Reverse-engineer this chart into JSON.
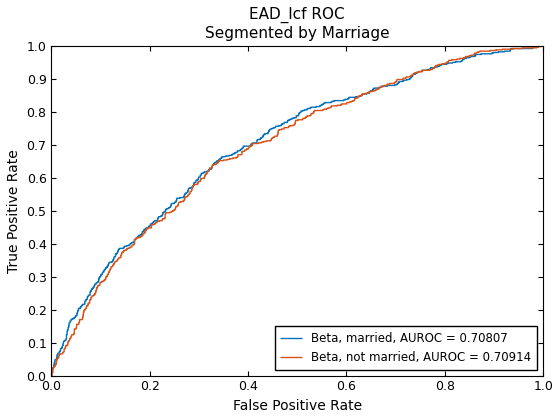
{
  "title_line1": "EAD_lcf ROC",
  "title_line2": "Segmented by Marriage",
  "xlabel": "False Positive Rate",
  "ylabel": "True Positive Rate",
  "xlim": [
    0,
    1
  ],
  "ylim": [
    0,
    1
  ],
  "line1_label": "Beta, married, AUROC = 0.70807",
  "line1_color": "#0072BD",
  "line2_label": "Beta, not married, AUROC = 0.70914",
  "line2_color": "#D95319",
  "legend_loc": "lower right",
  "background_color": "#ffffff",
  "auroc1": 0.70807,
  "auroc2": 0.70914,
  "seed1": 7,
  "seed2": 19,
  "linewidth": 1.0,
  "n_steps": 400
}
